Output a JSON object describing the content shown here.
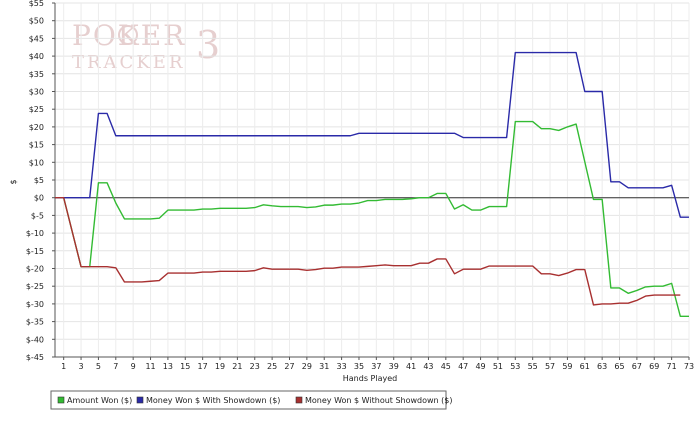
{
  "watermark": {
    "line1": "POKER",
    "digit": "3",
    "line2": "TRACKER"
  },
  "chart_data": {
    "type": "line",
    "xlabel": "Hands Played",
    "ylabel": "$",
    "xlim": [
      0,
      73
    ],
    "ylim": [
      -45,
      55
    ],
    "x_ticks": [
      1,
      3,
      5,
      7,
      9,
      11,
      13,
      15,
      17,
      19,
      21,
      23,
      25,
      27,
      29,
      31,
      33,
      35,
      37,
      39,
      41,
      43,
      45,
      47,
      49,
      51,
      53,
      55,
      57,
      59,
      61,
      63,
      65,
      67,
      69,
      71,
      73
    ],
    "y_ticks": [
      -45,
      -40,
      -35,
      -30,
      -25,
      -20,
      -15,
      -10,
      -5,
      0,
      5,
      10,
      15,
      20,
      25,
      30,
      35,
      40,
      45,
      50,
      55
    ],
    "y_tick_labels": [
      "$-45",
      "$-40",
      "$-35",
      "$-30",
      "$-25",
      "$-20",
      "$-15",
      "$-10",
      "$-5",
      "$0",
      "$5",
      "$10",
      "$15",
      "$20",
      "$25",
      "$30",
      "$35",
      "$40",
      "$45",
      "$50",
      "$55"
    ],
    "grid": true,
    "legend_position": "bottom-left",
    "series": [
      {
        "name": "Amount Won ($)",
        "color": "#33bb33",
        "points": [
          [
            0,
            0
          ],
          [
            1,
            0
          ],
          [
            3,
            -19.5
          ],
          [
            4,
            -19.5
          ],
          [
            5,
            4.2
          ],
          [
            6,
            4.2
          ],
          [
            7,
            -1.5
          ],
          [
            8,
            -6
          ],
          [
            9,
            -6
          ],
          [
            10,
            -6
          ],
          [
            11,
            -6
          ],
          [
            12,
            -5.8
          ],
          [
            13,
            -3.5
          ],
          [
            14,
            -3.5
          ],
          [
            15,
            -3.5
          ],
          [
            16,
            -3.5
          ],
          [
            17,
            -3.2
          ],
          [
            18,
            -3.2
          ],
          [
            19,
            -3
          ],
          [
            20,
            -3
          ],
          [
            21,
            -3
          ],
          [
            22,
            -3
          ],
          [
            23,
            -2.8
          ],
          [
            24,
            -2
          ],
          [
            25,
            -2.3
          ],
          [
            26,
            -2.5
          ],
          [
            27,
            -2.5
          ],
          [
            28,
            -2.5
          ],
          [
            29,
            -2.8
          ],
          [
            30,
            -2.6
          ],
          [
            31,
            -2.1
          ],
          [
            32,
            -2.1
          ],
          [
            33,
            -1.8
          ],
          [
            34,
            -1.8
          ],
          [
            35,
            -1.5
          ],
          [
            36,
            -0.8
          ],
          [
            37,
            -0.8
          ],
          [
            38,
            -0.5
          ],
          [
            39,
            -0.5
          ],
          [
            40,
            -0.5
          ],
          [
            41,
            -0.3
          ],
          [
            42,
            0
          ],
          [
            43,
            0
          ],
          [
            44,
            1.2
          ],
          [
            45,
            1.2
          ],
          [
            46,
            -3.2
          ],
          [
            47,
            -2
          ],
          [
            48,
            -3.5
          ],
          [
            49,
            -3.5
          ],
          [
            50,
            -2.5
          ],
          [
            51,
            -2.5
          ],
          [
            52,
            -2.5
          ],
          [
            53,
            21.5
          ],
          [
            54,
            21.5
          ],
          [
            55,
            21.5
          ],
          [
            56,
            19.5
          ],
          [
            57,
            19.5
          ],
          [
            58,
            19
          ],
          [
            59,
            20
          ],
          [
            60,
            20.8
          ],
          [
            62,
            -0.5
          ],
          [
            63,
            -0.5
          ],
          [
            64,
            -25.5
          ],
          [
            65,
            -25.5
          ],
          [
            66,
            -27
          ],
          [
            67,
            -26.2
          ],
          [
            68,
            -25.2
          ],
          [
            69,
            -25
          ],
          [
            70,
            -25
          ],
          [
            71,
            -24.2
          ],
          [
            72,
            -33.5
          ],
          [
            73,
            -33.5
          ]
        ]
      },
      {
        "name": "Money Won $ With Showdown ($)",
        "color": "#2a2aa8",
        "points": [
          [
            0,
            0
          ],
          [
            1,
            0
          ],
          [
            3,
            0
          ],
          [
            4,
            0
          ],
          [
            5,
            23.8
          ],
          [
            6,
            23.8
          ],
          [
            7,
            17.5
          ],
          [
            8,
            17.5
          ],
          [
            20,
            17.5
          ],
          [
            30,
            17.5
          ],
          [
            34,
            17.5
          ],
          [
            35,
            18.2
          ],
          [
            36,
            18.2
          ],
          [
            40,
            18.2
          ],
          [
            45,
            18.2
          ],
          [
            46,
            18.2
          ],
          [
            47,
            17
          ],
          [
            48,
            17
          ],
          [
            50,
            17
          ],
          [
            52,
            17
          ],
          [
            53,
            41
          ],
          [
            54,
            41
          ],
          [
            58,
            41
          ],
          [
            60,
            41
          ],
          [
            61,
            30
          ],
          [
            62,
            30
          ],
          [
            63,
            30
          ],
          [
            64,
            4.5
          ],
          [
            65,
            4.5
          ],
          [
            66,
            2.8
          ],
          [
            67,
            2.8
          ],
          [
            70,
            2.8
          ],
          [
            71,
            3.5
          ],
          [
            72,
            -5.5
          ],
          [
            73,
            -5.5
          ]
        ]
      },
      {
        "name": "Money Won $ Without Showdown ($)",
        "color": "#a83030",
        "points": [
          [
            0,
            0
          ],
          [
            1,
            0
          ],
          [
            3,
            -19.5
          ],
          [
            4,
            -19.5
          ],
          [
            5,
            -19.5
          ],
          [
            6,
            -19.5
          ],
          [
            7,
            -19.8
          ],
          [
            8,
            -23.8
          ],
          [
            9,
            -23.8
          ],
          [
            10,
            -23.8
          ],
          [
            11,
            -23.6
          ],
          [
            12,
            -23.4
          ],
          [
            13,
            -21.3
          ],
          [
            14,
            -21.3
          ],
          [
            15,
            -21.3
          ],
          [
            16,
            -21.3
          ],
          [
            17,
            -21
          ],
          [
            18,
            -21
          ],
          [
            19,
            -20.8
          ],
          [
            20,
            -20.8
          ],
          [
            21,
            -20.8
          ],
          [
            22,
            -20.8
          ],
          [
            23,
            -20.6
          ],
          [
            24,
            -19.8
          ],
          [
            25,
            -20.2
          ],
          [
            26,
            -20.2
          ],
          [
            27,
            -20.2
          ],
          [
            28,
            -20.2
          ],
          [
            29,
            -20.5
          ],
          [
            30,
            -20.3
          ],
          [
            31,
            -19.9
          ],
          [
            32,
            -19.9
          ],
          [
            33,
            -19.6
          ],
          [
            34,
            -19.6
          ],
          [
            35,
            -19.6
          ],
          [
            36,
            -19.4
          ],
          [
            37,
            -19.2
          ],
          [
            38,
            -19
          ],
          [
            39,
            -19.2
          ],
          [
            40,
            -19.2
          ],
          [
            41,
            -19.2
          ],
          [
            42,
            -18.5
          ],
          [
            43,
            -18.5
          ],
          [
            44,
            -17.3
          ],
          [
            45,
            -17.3
          ],
          [
            46,
            -21.5
          ],
          [
            47,
            -20.2
          ],
          [
            48,
            -20.2
          ],
          [
            49,
            -20.2
          ],
          [
            50,
            -19.3
          ],
          [
            51,
            -19.3
          ],
          [
            52,
            -19.3
          ],
          [
            53,
            -19.3
          ],
          [
            54,
            -19.3
          ],
          [
            55,
            -19.3
          ],
          [
            56,
            -21.5
          ],
          [
            57,
            -21.5
          ],
          [
            58,
            -22
          ],
          [
            59,
            -21.3
          ],
          [
            60,
            -20.3
          ],
          [
            61,
            -20.3
          ],
          [
            62,
            -30.3
          ],
          [
            63,
            -30
          ],
          [
            64,
            -30
          ],
          [
            65,
            -29.8
          ],
          [
            66,
            -29.8
          ],
          [
            67,
            -29
          ],
          [
            68,
            -27.8
          ],
          [
            69,
            -27.5
          ],
          [
            70,
            -27.5
          ],
          [
            71,
            -27.5
          ],
          [
            72,
            -27.5
          ]
        ]
      }
    ]
  }
}
